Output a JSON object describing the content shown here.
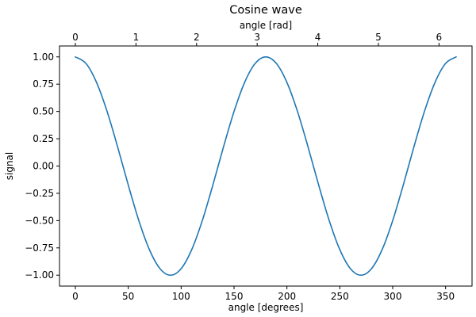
{
  "chart_data": {
    "type": "line",
    "title": "Cosine wave",
    "xlabel": "angle [degrees]",
    "ylabel": "signal",
    "x2label": "angle [rad]",
    "xlim": [
      -15,
      375
    ],
    "ylim": [
      -1.1,
      1.1
    ],
    "x2lim": [
      -0.2618,
      6.545
    ],
    "xticks": [
      0,
      50,
      100,
      150,
      200,
      250,
      300,
      350
    ],
    "xtick_labels": [
      "0",
      "50",
      "100",
      "150",
      "200",
      "250",
      "300",
      "350"
    ],
    "x2ticks": [
      0,
      1,
      2,
      3,
      4,
      5,
      6
    ],
    "x2tick_labels": [
      "0",
      "1",
      "2",
      "3",
      "4",
      "5",
      "6"
    ],
    "yticks": [
      -1.0,
      -0.75,
      -0.5,
      -0.25,
      0.0,
      0.25,
      0.5,
      0.75,
      1.0
    ],
    "ytick_labels": [
      "−1.00",
      "−0.75",
      "−0.50",
      "−0.25",
      "0.00",
      "0.25",
      "0.50",
      "0.75",
      "1.00"
    ],
    "grid": false,
    "series": [
      {
        "color": "#1f77b4",
        "x": [
          0,
          10,
          20,
          30,
          40,
          50,
          60,
          70,
          80,
          90,
          100,
          110,
          120,
          130,
          140,
          150,
          160,
          170,
          180,
          190,
          200,
          210,
          220,
          230,
          240,
          250,
          260,
          270,
          280,
          290,
          300,
          310,
          320,
          330,
          340,
          350,
          360
        ],
        "y": [
          1.0,
          0.94,
          0.766,
          0.5,
          0.174,
          -0.174,
          -0.5,
          -0.766,
          -0.94,
          -1.0,
          -0.94,
          -0.766,
          -0.5,
          -0.174,
          0.174,
          0.5,
          0.766,
          0.94,
          1.0,
          0.94,
          0.766,
          0.5,
          0.174,
          -0.174,
          -0.5,
          -0.766,
          -0.94,
          -1.0,
          -0.94,
          -0.766,
          -0.5,
          -0.174,
          0.174,
          0.5,
          0.766,
          0.94,
          1.0
        ]
      }
    ]
  }
}
